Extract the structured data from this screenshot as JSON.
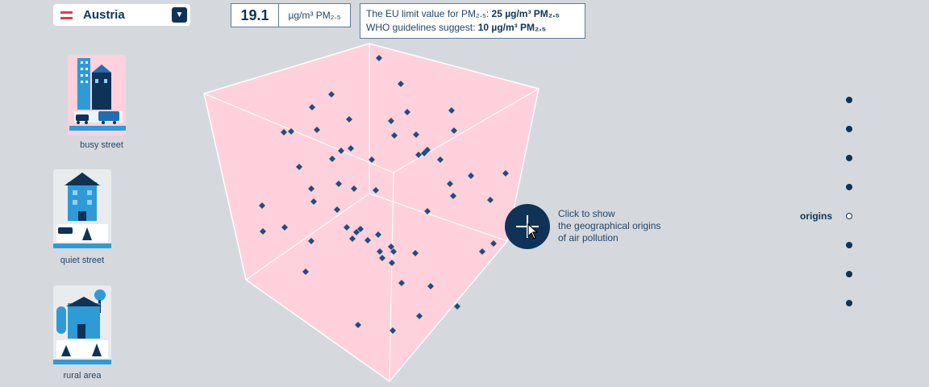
{
  "country_select": {
    "name": "Austria",
    "flag_colors": [
      "#e53b46",
      "#ffffff",
      "#e53b46"
    ],
    "dropdown_icon": "triangle-down-icon"
  },
  "pm_value": {
    "number": "19.1",
    "unit": "µg/m³ PM₂.₅"
  },
  "limits": {
    "eu_text": "The EU limit value for PM₂.₅:",
    "eu_value": "25 µg/m³ PM₂.₅",
    "who_text": "WHO guidelines suggest:",
    "who_value": "10 µg/m³ PM₂.₅"
  },
  "scenarios": [
    {
      "label": "busy street",
      "icon": "city-traffic-icon"
    },
    {
      "label": "quiet street",
      "icon": "house-car-tree-icon"
    },
    {
      "label": "rural area",
      "icon": "house-trees-icon"
    }
  ],
  "hint": {
    "lines": [
      "Click to show",
      "the geographical origins",
      "of air pollution"
    ],
    "button_icon": "plus-icon"
  },
  "nav": {
    "active_label": "origins",
    "dots": 8,
    "active_index": 4
  },
  "colors": {
    "background": "#d5d9dd",
    "cube_fill": "#ffd1dc",
    "accent": "#0f3357",
    "particle": "#1f4e7d"
  }
}
